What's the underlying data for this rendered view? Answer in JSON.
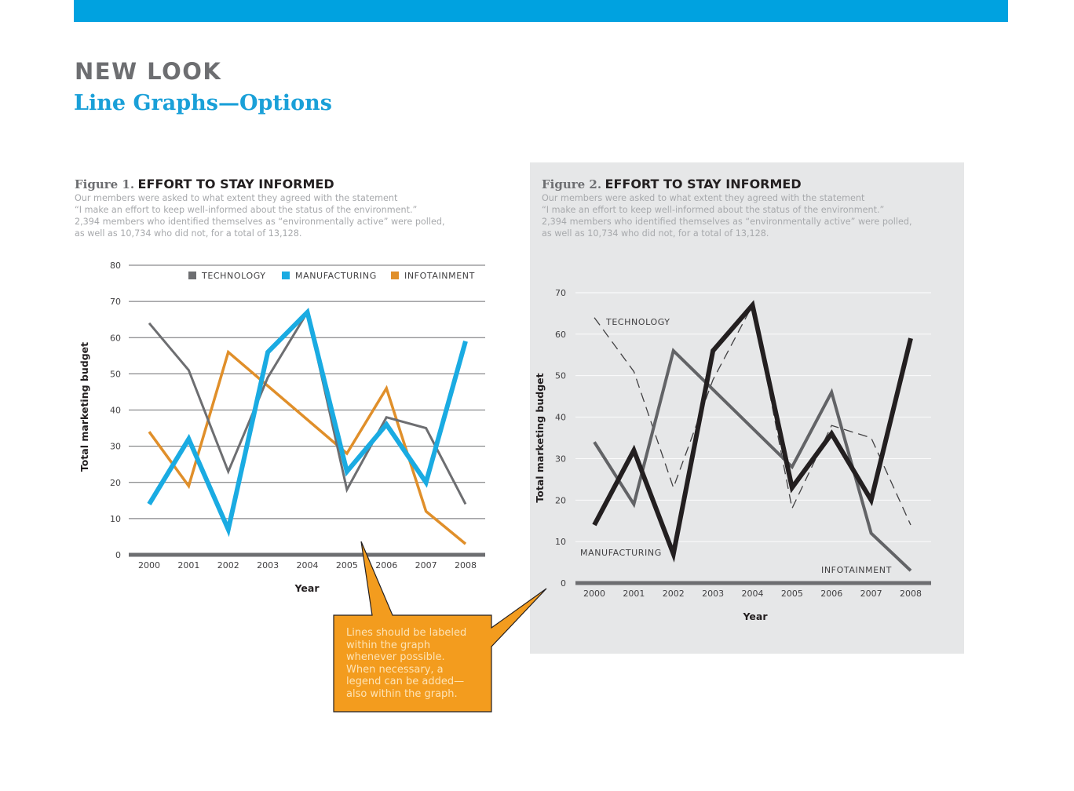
{
  "header": {
    "title": "NEW LOOK",
    "subtitle": "Line Graphs—Options"
  },
  "callout": {
    "lines": [
      "Lines should be labeled",
      "within the graph",
      "whenever possible.",
      "When necessary, a",
      "legend can be added—",
      "also within the graph."
    ],
    "fill": "#f39c1e"
  },
  "colors": {
    "accent": "#00a2e0",
    "technology": "#6d6e71",
    "manufacturing": "#1aabe2",
    "infotainment": "#e08f2a",
    "fig2_manufacturing": "#231f20",
    "fig2_infotainment": "#626366",
    "fig2_panel": "#e6e7e8"
  },
  "figure1": {
    "label": "Figure 1.",
    "title": "EFFORT TO STAY INFORMED",
    "description": [
      "Our members were asked to what extent they agreed with the statement",
      "“I make an effort to keep well-informed about the status of the environment.”",
      "2,394 members who identified themselves as “environmentally active” were polled,",
      "as well as 10,734 who did not, for a total of 13,128."
    ]
  },
  "figure2": {
    "label": "Figure 2.",
    "title": "EFFORT TO STAY INFORMED",
    "description": [
      "Our members were asked to what extent they agreed with the statement",
      "“I make an effort to keep well-informed about the status of the environment.”",
      "2,394 members who identified themselves as “environmentally active” were polled,",
      "as well as 10,734 who did not, for a total of 13,128."
    ]
  },
  "chart_data": [
    {
      "type": "line",
      "title": "EFFORT TO STAY INFORMED",
      "xlabel": "Year",
      "ylabel": "Total marketing budget",
      "x": [
        "2000",
        "2001",
        "2002",
        "2003",
        "2004",
        "2005",
        "2006",
        "2007",
        "2008"
      ],
      "ylim": [
        0,
        80
      ],
      "yticks": [
        0,
        10,
        20,
        30,
        40,
        50,
        60,
        70,
        80
      ],
      "grid": true,
      "legend": "top-right",
      "series": [
        {
          "name": "TECHNOLOGY",
          "values": [
            64,
            51,
            23,
            49,
            67,
            18,
            38,
            35,
            14
          ]
        },
        {
          "name": "MANUFACTURING",
          "values": [
            14,
            32,
            7,
            56,
            67,
            23,
            36,
            20,
            59
          ]
        },
        {
          "name": "INFOTAINMENT",
          "values": [
            34,
            19,
            56,
            null,
            null,
            28,
            46,
            12,
            3
          ]
        }
      ]
    },
    {
      "type": "line",
      "title": "EFFORT TO STAY INFORMED",
      "xlabel": "Year",
      "ylabel": "Total marketing budget",
      "x": [
        "2000",
        "2001",
        "2002",
        "2003",
        "2004",
        "2005",
        "2006",
        "2007",
        "2008"
      ],
      "ylim": [
        0,
        70
      ],
      "yticks": [
        0,
        10,
        20,
        30,
        40,
        50,
        60,
        70
      ],
      "grid": true,
      "legend": "inline labels",
      "series": [
        {
          "name": "TECHNOLOGY",
          "values": [
            64,
            51,
            23,
            49,
            67,
            18,
            38,
            35,
            14
          ]
        },
        {
          "name": "MANUFACTURING",
          "values": [
            14,
            32,
            7,
            56,
            67,
            23,
            36,
            20,
            59
          ]
        },
        {
          "name": "INFOTAINMENT",
          "values": [
            34,
            19,
            56,
            null,
            null,
            28,
            46,
            12,
            3
          ]
        }
      ]
    }
  ]
}
